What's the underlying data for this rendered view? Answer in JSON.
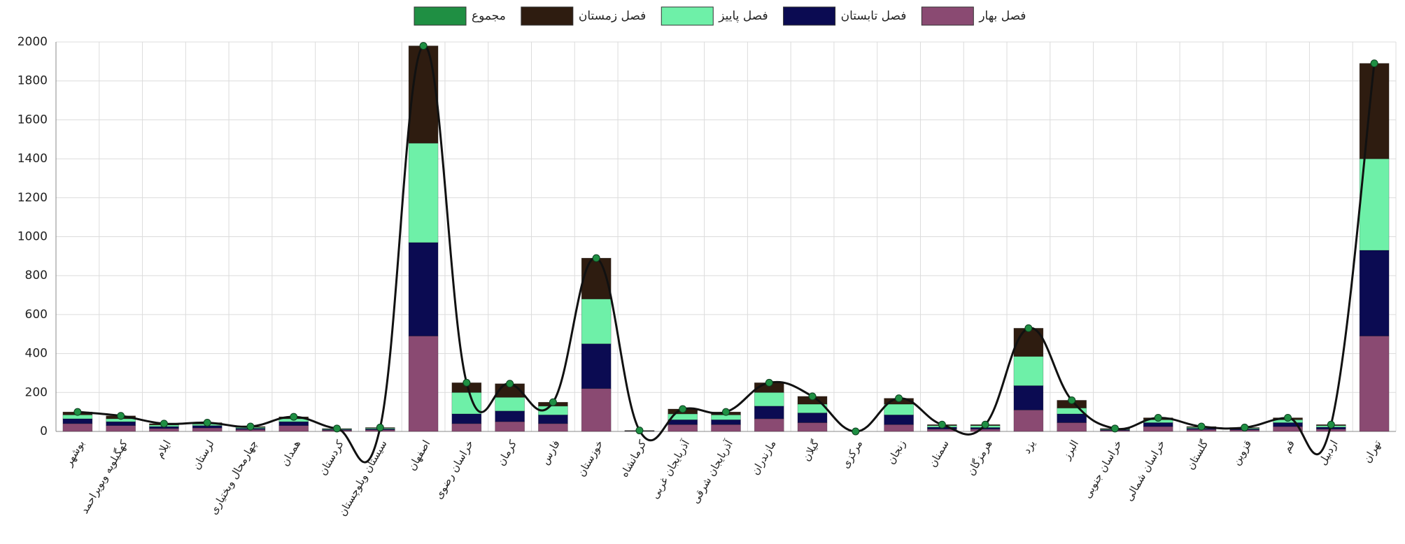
{
  "chart_data": {
    "type": "bar",
    "stacked": true,
    "grid": true,
    "categories": [
      "بوشهر",
      "کهگیلویه وبویراحمد",
      "ایلام",
      "لرستان",
      "چهارمحال وبختیاری",
      "همدان",
      "کردستان",
      "سیستان وبلوچستان",
      "اصفهان",
      "خراسان رضوی",
      "کرمان",
      "فارس",
      "خوزستان",
      "کرمانشاه",
      "آذربایجان غربی",
      "آذربایجان شرقی",
      "مازندران",
      "گیلان",
      "مرکزی",
      "زنجان",
      "سمنان",
      "هرمزگان",
      "یزد",
      "البرز",
      "خراسان جنوبی",
      "خراسان شمالی",
      "گلستان",
      "قزوین",
      "قم",
      "اردبیل",
      "تهران"
    ],
    "series": [
      {
        "name": "فصل بهار",
        "color": "#8a4a72",
        "values": [
          40,
          30,
          15,
          18,
          10,
          30,
          6,
          8,
          490,
          40,
          50,
          40,
          220,
          2,
          35,
          35,
          65,
          45,
          0,
          35,
          12,
          12,
          110,
          45,
          5,
          25,
          10,
          8,
          25,
          12,
          490
        ]
      },
      {
        "name": "فصل تابستان",
        "color": "#0b0b52",
        "values": [
          25,
          20,
          10,
          12,
          6,
          20,
          4,
          5,
          480,
          50,
          55,
          45,
          230,
          1,
          25,
          25,
          65,
          50,
          0,
          50,
          10,
          8,
          125,
          45,
          4,
          20,
          6,
          5,
          20,
          10,
          440
        ]
      },
      {
        "name": "فصل پاییز",
        "color": "#6ef0a8",
        "values": [
          20,
          15,
          8,
          8,
          5,
          15,
          3,
          4,
          510,
          110,
          70,
          45,
          230,
          1,
          30,
          25,
          70,
          45,
          0,
          55,
          8,
          10,
          150,
          30,
          3,
          15,
          5,
          4,
          15,
          8,
          470
        ]
      },
      {
        "name": "فصل زمستان",
        "color": "#2e1c10",
        "values": [
          15,
          15,
          7,
          7,
          4,
          10,
          2,
          3,
          500,
          50,
          70,
          20,
          210,
          1,
          25,
          15,
          50,
          40,
          0,
          30,
          5,
          5,
          145,
          40,
          3,
          10,
          4,
          3,
          10,
          5,
          490
        ]
      },
      {
        "name": "مجموع",
        "type": "line",
        "color": "#1f8f43",
        "values": [
          100,
          80,
          40,
          45,
          25,
          75,
          15,
          20,
          1980,
          250,
          245,
          150,
          890,
          5,
          115,
          100,
          250,
          180,
          0,
          170,
          35,
          35,
          530,
          160,
          15,
          70,
          25,
          20,
          70,
          35,
          1890
        ]
      }
    ],
    "ylim": [
      0,
      2000
    ],
    "yticks": [
      0,
      200,
      400,
      600,
      800,
      1000,
      1200,
      1400,
      1600,
      1800,
      2000
    ]
  }
}
